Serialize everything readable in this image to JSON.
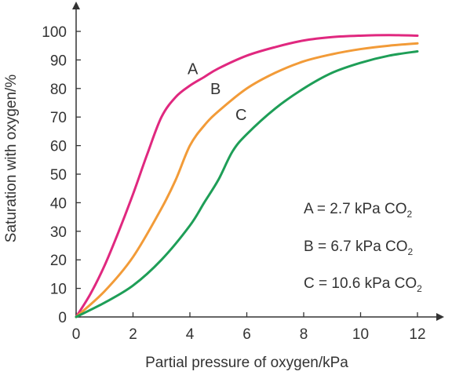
{
  "chart_data": {
    "type": "line",
    "title": "",
    "xlabel": "Partial pressure of oxygen/kPa",
    "ylabel": "Saturation with oxygen/%",
    "xlim": [
      0,
      12
    ],
    "ylim": [
      0,
      100
    ],
    "x_ticks": [
      "0",
      "2",
      "4",
      "6",
      "8",
      "10",
      "12"
    ],
    "y_ticks": [
      "0",
      "10",
      "20",
      "30",
      "40",
      "50",
      "60",
      "70",
      "80",
      "90",
      "100"
    ],
    "grid": false,
    "series": [
      {
        "name": "A",
        "color": "#e0287f",
        "x": [
          0,
          0.5,
          1,
          1.5,
          2,
          2.5,
          3,
          3.5,
          4,
          4.5,
          5,
          6,
          7,
          8,
          9,
          10,
          11,
          12
        ],
        "y": [
          0,
          8,
          18,
          30,
          43,
          57,
          70,
          77,
          81,
          84,
          87,
          91.5,
          94.5,
          96.8,
          98,
          98.5,
          98.7,
          98.5
        ]
      },
      {
        "name": "B",
        "color": "#f29b38",
        "x": [
          0,
          1,
          2,
          3,
          3.5,
          4,
          4.5,
          5,
          6,
          7,
          8,
          9,
          10,
          11,
          12
        ],
        "y": [
          0,
          9,
          21,
          38,
          48,
          60,
          67,
          72,
          80,
          85.5,
          89.5,
          92,
          93.8,
          95,
          95.8
        ]
      },
      {
        "name": "C",
        "color": "#1e9e57",
        "x": [
          0,
          1,
          2,
          3,
          4,
          4.5,
          5,
          5.5,
          6,
          7,
          8,
          9,
          10,
          11,
          12
        ],
        "y": [
          0,
          5,
          11,
          20,
          32,
          40,
          48,
          58,
          64,
          73,
          80,
          85.5,
          89,
          91.5,
          93
        ]
      }
    ],
    "curve_labels": [
      {
        "text": "A",
        "x": 4.1,
        "y": 85
      },
      {
        "text": "B",
        "x": 4.9,
        "y": 78
      },
      {
        "text": "C",
        "x": 5.8,
        "y": 69
      }
    ],
    "legend": {
      "placement": "right",
      "items": [
        {
          "text": "A = 2.7 kPa CO",
          "sub": "2"
        },
        {
          "text": "B = 6.7 kPa CO",
          "sub": "2"
        },
        {
          "text": "C = 10.6 kPa CO",
          "sub": "2"
        }
      ]
    }
  }
}
